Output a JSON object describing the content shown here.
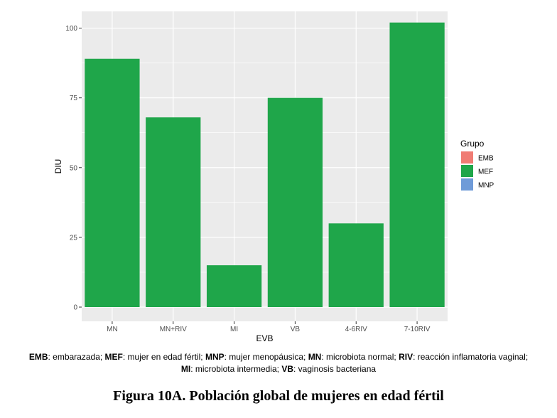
{
  "chart_data": {
    "type": "bar",
    "categories": [
      "MN",
      "MN+RIV",
      "MI",
      "VB",
      "4-6RIV",
      "7-10RIV"
    ],
    "series": [
      {
        "name": "MEF",
        "values": [
          89,
          68,
          15,
          75,
          30,
          102
        ],
        "color": "#1fa64a"
      }
    ],
    "xlabel": "EVB",
    "ylabel": "DIU",
    "ylim": [
      0,
      106
    ],
    "yticks": [
      0,
      25,
      50,
      75,
      100
    ],
    "grid": true,
    "panel_background": "#ebebeb",
    "legend": {
      "title": "Grupo",
      "position": "right",
      "entries": [
        {
          "label": "EMB",
          "color": "#f07c74"
        },
        {
          "label": "MEF",
          "color": "#1fa64a"
        },
        {
          "label": "MNP",
          "color": "#6f9bd8"
        }
      ]
    }
  },
  "caption": {
    "line1": [
      {
        "bold": "EMB",
        "text": ": embarazada; "
      },
      {
        "bold": "MEF",
        "text": ": mujer en edad fértil; "
      },
      {
        "bold": "MNP",
        "text": ": mujer menopáusica; "
      },
      {
        "bold": "MN",
        "text": ": microbiota normal; "
      },
      {
        "bold": "RIV",
        "text": ": reacción inflamatoria vaginal;"
      }
    ],
    "line2": [
      {
        "bold": "MI",
        "text": ": microbiota intermedia; "
      },
      {
        "bold": "VB",
        "text": ": vaginosis bacteriana"
      }
    ]
  },
  "figure_title": "Figura 10A. Población global de mujeres en edad fértil"
}
